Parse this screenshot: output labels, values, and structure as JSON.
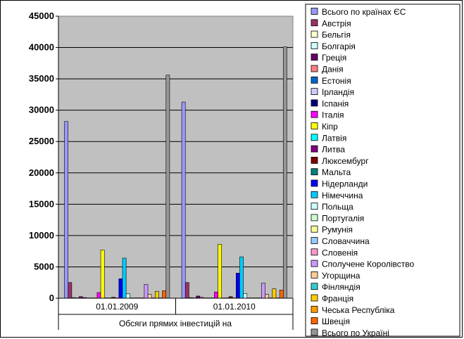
{
  "chart_data": {
    "type": "bar",
    "title": "",
    "xlabel": "Обсяги прямих інвестицій на",
    "ylabel": "",
    "ylim": [
      0,
      45000
    ],
    "yticks": [
      0,
      5000,
      10000,
      15000,
      20000,
      25000,
      30000,
      35000,
      40000,
      45000
    ],
    "ytick_labels": [
      "0",
      "5000",
      "10000",
      "15000",
      "20000",
      "25000",
      "30000",
      "35000",
      "40000",
      "45000"
    ],
    "grid": true,
    "legend_position": "right",
    "categories": [
      "01.01.2009",
      "01.01.2010"
    ],
    "series": [
      {
        "name": "Всього по країнах ЄС",
        "color": "#9999ff",
        "values": [
          28200,
          31300
        ]
      },
      {
        "name": "Австрія",
        "color": "#993366",
        "values": [
          2500,
          2500
        ]
      },
      {
        "name": "Бельгія",
        "color": "#ffffcc",
        "values": [
          100,
          100
        ]
      },
      {
        "name": "Болгарія",
        "color": "#ccffff",
        "values": [
          50,
          50
        ]
      },
      {
        "name": "Греція",
        "color": "#660066",
        "values": [
          250,
          350
        ]
      },
      {
        "name": "Данія",
        "color": "#ff8080",
        "values": [
          100,
          150
        ]
      },
      {
        "name": "Естонія",
        "color": "#0066cc",
        "values": [
          50,
          50
        ]
      },
      {
        "name": "Ірландія",
        "color": "#ccccff",
        "values": [
          50,
          50
        ]
      },
      {
        "name": "Іспанія",
        "color": "#000080",
        "values": [
          50,
          50
        ]
      },
      {
        "name": "Італія",
        "color": "#ff00ff",
        "values": [
          900,
          1000
        ]
      },
      {
        "name": "Кіпр",
        "color": "#ffff00",
        "values": [
          7700,
          8600
        ]
      },
      {
        "name": "Латвія",
        "color": "#00ffff",
        "values": [
          50,
          50
        ]
      },
      {
        "name": "Литва",
        "color": "#800080",
        "values": [
          50,
          50
        ]
      },
      {
        "name": "Люксембург",
        "color": "#800000",
        "values": [
          150,
          250
        ]
      },
      {
        "name": "Мальта",
        "color": "#008080",
        "values": [
          50,
          50
        ]
      },
      {
        "name": "Нідерланди",
        "color": "#0000ff",
        "values": [
          3100,
          4000
        ]
      },
      {
        "name": "Німеччина",
        "color": "#00ccff",
        "values": [
          6400,
          6600
        ]
      },
      {
        "name": "Польща",
        "color": "#ccffff",
        "values": [
          700,
          750
        ]
      },
      {
        "name": "Португалія",
        "color": "#ccffcc",
        "values": [
          50,
          50
        ]
      },
      {
        "name": "Румунія",
        "color": "#ffff99",
        "values": [
          50,
          50
        ]
      },
      {
        "name": "Словаччина",
        "color": "#99ccff",
        "values": [
          50,
          50
        ]
      },
      {
        "name": "Словенія",
        "color": "#ff99cc",
        "values": [
          50,
          50
        ]
      },
      {
        "name": "Сполучене Королівство",
        "color": "#cc99ff",
        "values": [
          2200,
          2400
        ]
      },
      {
        "name": "Угорщина",
        "color": "#ffcc99",
        "values": [
          600,
          600
        ]
      },
      {
        "name": "Фінляндія",
        "color": "#33cccc",
        "values": [
          50,
          50
        ]
      },
      {
        "name": "Франція",
        "color": "#ffcc00",
        "values": [
          1100,
          1500
        ]
      },
      {
        "name": "Чеська Республіка",
        "color": "#ff9900",
        "values": [
          50,
          50
        ]
      },
      {
        "name": "Швеція",
        "color": "#ff6600",
        "values": [
          1200,
          1300
        ]
      },
      {
        "name": "Всього по Україні",
        "color": "#969696",
        "values": [
          35600,
          40100
        ]
      }
    ]
  }
}
